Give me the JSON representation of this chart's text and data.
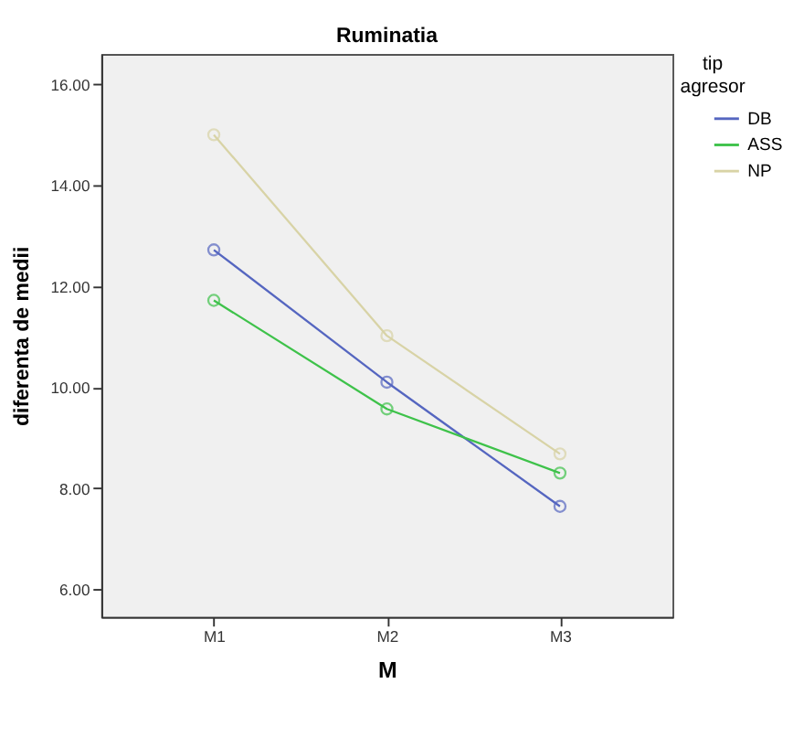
{
  "chart_data": {
    "type": "line",
    "title": "Ruminatia",
    "xlabel": "M",
    "ylabel": "diferenta de medii",
    "legend_title": "tip agresor",
    "categories": [
      "M1",
      "M2",
      "M3"
    ],
    "series": [
      {
        "name": "DB",
        "color": "#5566c0",
        "values": [
          12.72,
          10.1,
          7.64
        ]
      },
      {
        "name": "ASS",
        "color": "#3ec24a",
        "values": [
          11.72,
          9.57,
          8.3
        ]
      },
      {
        "name": "NP",
        "color": "#d8d3a6",
        "values": [
          15.0,
          11.02,
          8.68
        ]
      }
    ],
    "ylim": [
      5.45,
      16.6
    ],
    "yticks": [
      {
        "value": 6,
        "label": "6.00"
      },
      {
        "value": 8,
        "label": "8.00"
      },
      {
        "value": 10,
        "label": "10.00"
      },
      {
        "value": 12,
        "label": "12.00"
      },
      {
        "value": 14,
        "label": "14.00"
      },
      {
        "value": 16,
        "label": "16.00"
      }
    ],
    "grid": false,
    "legend": "top right",
    "marker": "circle",
    "line_style": "solid"
  }
}
